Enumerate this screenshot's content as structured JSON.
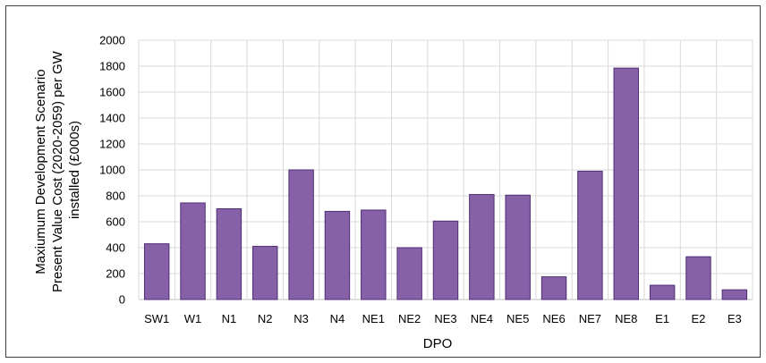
{
  "chart_data": {
    "type": "bar",
    "title": "",
    "xlabel": "DPO",
    "ylabel_lines": [
      "Maxiumum Development Scenario",
      "Present Value Cost (2020-2059) per GW",
      "installed (£000s)"
    ],
    "categories": [
      "SW1",
      "W1",
      "N1",
      "N2",
      "N3",
      "N4",
      "NE1",
      "NE2",
      "NE3",
      "NE4",
      "NE5",
      "NE6",
      "NE7",
      "NE8",
      "E1",
      "E2",
      "E3"
    ],
    "values": [
      430,
      745,
      700,
      410,
      1000,
      680,
      690,
      400,
      605,
      810,
      805,
      175,
      990,
      1785,
      110,
      330,
      75
    ],
    "ylim": [
      0,
      2000
    ],
    "yticks": [
      0,
      200,
      400,
      600,
      800,
      1000,
      1200,
      1400,
      1600,
      1800,
      2000
    ],
    "grid": true,
    "legend": "none",
    "colors": {
      "bar_fill": "#8661a8",
      "bar_stroke": "#4f2d73",
      "grid": "#d9d9d9",
      "frame": "#404040"
    }
  }
}
